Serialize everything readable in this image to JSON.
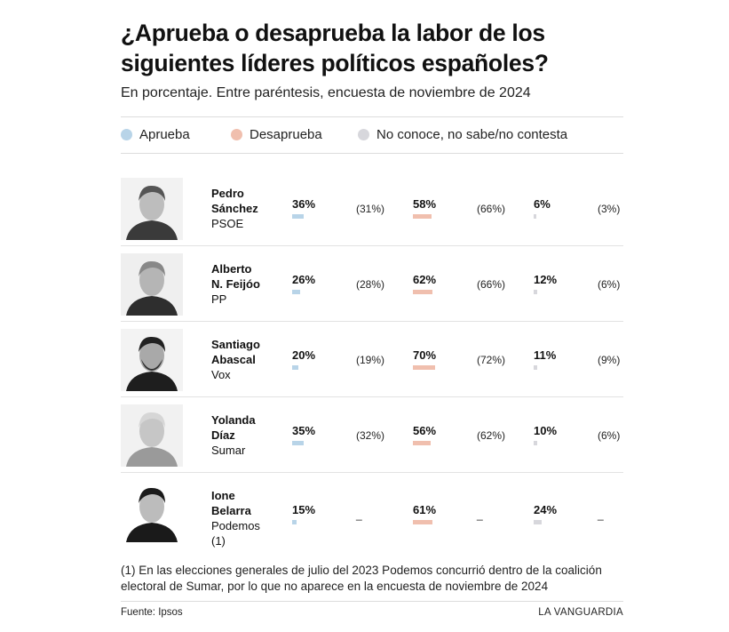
{
  "title": "¿Aprueba o desaprueba la labor de los siguientes líderes políticos españoles?",
  "subtitle": "En porcentaje. Entre paréntesis, encuesta de noviembre de 2024",
  "legend": [
    {
      "label": "Aprueba",
      "color": "#b8d4e8"
    },
    {
      "label": "Desaprueba",
      "color": "#f0bfae"
    },
    {
      "label": "No conoce, no sabe/no contesta",
      "color": "#d7d7dc"
    }
  ],
  "chart_data": {
    "type": "bar",
    "categories": [
      "Pedro Sánchez",
      "Alberto N. Feijóo",
      "Santiago Abascal",
      "Yolanda Díaz",
      "Ione Belarra"
    ],
    "series": [
      {
        "name": "Aprueba",
        "values": [
          36,
          26,
          20,
          35,
          15
        ],
        "previous": [
          31,
          28,
          19,
          32,
          null
        ]
      },
      {
        "name": "Desaprueba",
        "values": [
          58,
          62,
          70,
          56,
          61
        ],
        "previous": [
          66,
          66,
          72,
          62,
          null
        ]
      },
      {
        "name": "No conoce, no sabe/no contesta",
        "values": [
          6,
          12,
          11,
          10,
          24
        ],
        "previous": [
          3,
          6,
          9,
          6,
          null
        ]
      }
    ]
  },
  "rows": [
    {
      "name_lines": [
        "Pedro",
        "Sánchez"
      ],
      "party": "PSOE",
      "approve": {
        "value": 36,
        "label": "36%",
        "prev": "(31%)"
      },
      "disapprove": {
        "value": 58,
        "label": "58%",
        "prev": "(66%)"
      },
      "unknown": {
        "value": 6,
        "label": "6%",
        "prev": "(3%)"
      }
    },
    {
      "name_lines": [
        "Alberto",
        "N. Feijóo"
      ],
      "party": "PP",
      "approve": {
        "value": 26,
        "label": "26%",
        "prev": "(28%)"
      },
      "disapprove": {
        "value": 62,
        "label": "62%",
        "prev": "(66%)"
      },
      "unknown": {
        "value": 12,
        "label": "12%",
        "prev": "(6%)"
      }
    },
    {
      "name_lines": [
        "Santiago",
        "Abascal"
      ],
      "party": "Vox",
      "approve": {
        "value": 20,
        "label": "20%",
        "prev": "(19%)"
      },
      "disapprove": {
        "value": 70,
        "label": "70%",
        "prev": "(72%)"
      },
      "unknown": {
        "value": 11,
        "label": "11%",
        "prev": "(9%)"
      }
    },
    {
      "name_lines": [
        "Yolanda",
        "Díaz"
      ],
      "party": "Sumar",
      "approve": {
        "value": 35,
        "label": "35%",
        "prev": "(32%)"
      },
      "disapprove": {
        "value": 56,
        "label": "56%",
        "prev": "(62%)"
      },
      "unknown": {
        "value": 10,
        "label": "10%",
        "prev": "(6%)"
      }
    },
    {
      "name_lines": [
        "Ione",
        "Belarra"
      ],
      "party": "Podemos",
      "party_note": "(1)",
      "approve": {
        "value": 15,
        "label": "15%",
        "prev": "_"
      },
      "disapprove": {
        "value": 61,
        "label": "61%",
        "prev": "_"
      },
      "unknown": {
        "value": 24,
        "label": "24%",
        "prev": "_"
      }
    }
  ],
  "footnote": "(1) En las elecciones generales de julio del 2023 Podemos concurrió dentro de la coalición electoral de Sumar, por lo que no aparece en la encuesta de noviembre de 2024",
  "source": "Fuente: Ipsos",
  "brand": "LA VANGUARDIA"
}
